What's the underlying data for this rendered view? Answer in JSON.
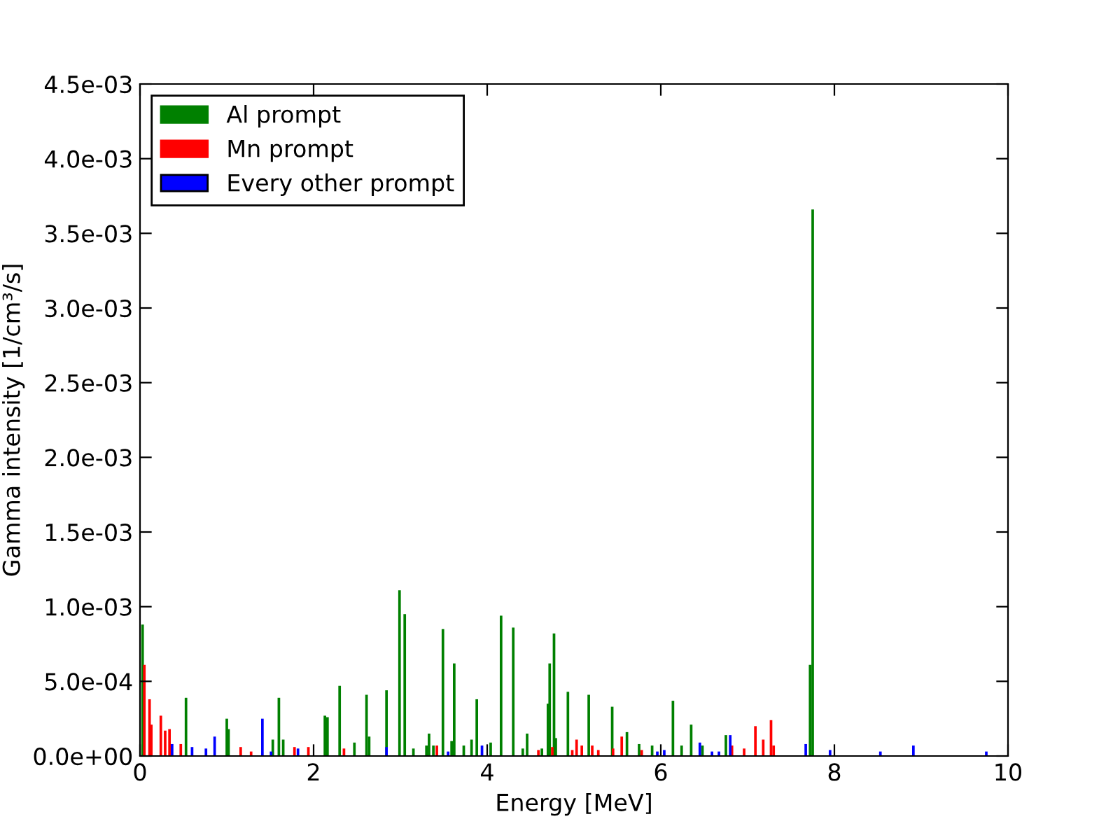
{
  "chart_data": {
    "type": "bar",
    "xlabel": "Energy [MeV]",
    "ylabel": "Gamma intensity [1/cm³/s]",
    "xlim": [
      0,
      10
    ],
    "xticks": [
      0,
      2,
      4,
      6,
      8,
      10
    ],
    "ylim": [
      0,
      0.0045
    ],
    "yticks": [
      {
        "value": 0,
        "label": "0.0e+00"
      },
      {
        "value": 0.0005,
        "label": "5.0e-04"
      },
      {
        "value": 0.001,
        "label": "1.0e-03"
      },
      {
        "value": 0.0015,
        "label": "1.5e-03"
      },
      {
        "value": 0.002,
        "label": "2.0e-03"
      },
      {
        "value": 0.0025,
        "label": "2.5e-03"
      },
      {
        "value": 0.003,
        "label": "3.0e-03"
      },
      {
        "value": 0.0035,
        "label": "3.5e-03"
      },
      {
        "value": 0.004,
        "label": "4.0e-03"
      },
      {
        "value": 0.0045,
        "label": "4.5e-03"
      }
    ],
    "grid": false,
    "legend": "top left",
    "series": [
      {
        "name": "Al prompt",
        "color": "#008000",
        "x": [
          0.03,
          0.53,
          1.0,
          1.02,
          1.53,
          1.6,
          1.65,
          2.13,
          2.16,
          2.3,
          2.47,
          2.61,
          2.64,
          2.84,
          2.99,
          3.05,
          3.15,
          3.3,
          3.33,
          3.38,
          3.49,
          3.59,
          3.62,
          3.73,
          3.82,
          3.88,
          4.04,
          4.16,
          4.3,
          4.41,
          4.46,
          4.63,
          4.7,
          4.72,
          4.77,
          4.79,
          4.93,
          5.17,
          5.44,
          5.61,
          5.75,
          5.9,
          6.14,
          6.24,
          6.35,
          6.48,
          6.75,
          7.72,
          7.75
        ],
        "values": [
          0.00088,
          0.00039,
          0.00025,
          0.00018,
          0.00011,
          0.00039,
          0.00011,
          0.00027,
          0.00026,
          0.00047,
          9e-05,
          0.00041,
          0.00013,
          0.00044,
          0.00111,
          0.00095,
          5e-05,
          7e-05,
          0.00015,
          7e-05,
          0.00085,
          0.0001,
          0.00062,
          7e-05,
          0.00011,
          0.00038,
          9e-05,
          0.00094,
          0.00086,
          5e-05,
          0.00015,
          5e-05,
          0.00035,
          0.00062,
          0.00082,
          0.00012,
          0.00043,
          0.00041,
          0.00033,
          0.00016,
          8e-05,
          7e-05,
          0.00037,
          7e-05,
          0.00021,
          7e-05,
          0.00014,
          0.00061,
          0.00366
        ]
      },
      {
        "name": "Mn prompt",
        "color": "#ff0000",
        "x": [
          0.05,
          0.11,
          0.13,
          0.24,
          0.29,
          0.34,
          0.47,
          1.16,
          1.28,
          1.78,
          1.94,
          2.35,
          3.42,
          4.59,
          4.75,
          4.98,
          5.03,
          5.09,
          5.21,
          5.28,
          5.45,
          5.55,
          5.78,
          6.82,
          6.96,
          7.09,
          7.18,
          7.27,
          7.3
        ],
        "values": [
          0.00061,
          0.00038,
          0.00021,
          0.00027,
          0.00017,
          0.00018,
          8e-05,
          6e-05,
          3e-05,
          6e-05,
          6e-05,
          5e-05,
          7e-05,
          4e-05,
          6e-05,
          4e-05,
          0.00011,
          7e-05,
          7e-05,
          4e-05,
          5e-05,
          0.00013,
          4e-05,
          7e-05,
          5e-05,
          0.0002,
          0.00011,
          0.00024,
          7e-05
        ]
      },
      {
        "name": "Every other prompt",
        "color": "#0000ff",
        "x": [
          0.37,
          0.6,
          0.76,
          0.86,
          1.41,
          1.51,
          1.82,
          2.84,
          3.55,
          3.94,
          5.96,
          6.04,
          6.45,
          6.59,
          6.67,
          6.8,
          7.67,
          7.95,
          8.53,
          8.91,
          9.75
        ],
        "values": [
          8e-05,
          6e-05,
          5e-05,
          0.00013,
          0.00025,
          3e-05,
          5e-05,
          6e-05,
          3e-05,
          7e-05,
          3e-05,
          4e-05,
          9e-05,
          3e-05,
          3e-05,
          0.00014,
          8e-05,
          4e-05,
          3e-05,
          7e-05,
          3e-05
        ]
      }
    ]
  }
}
